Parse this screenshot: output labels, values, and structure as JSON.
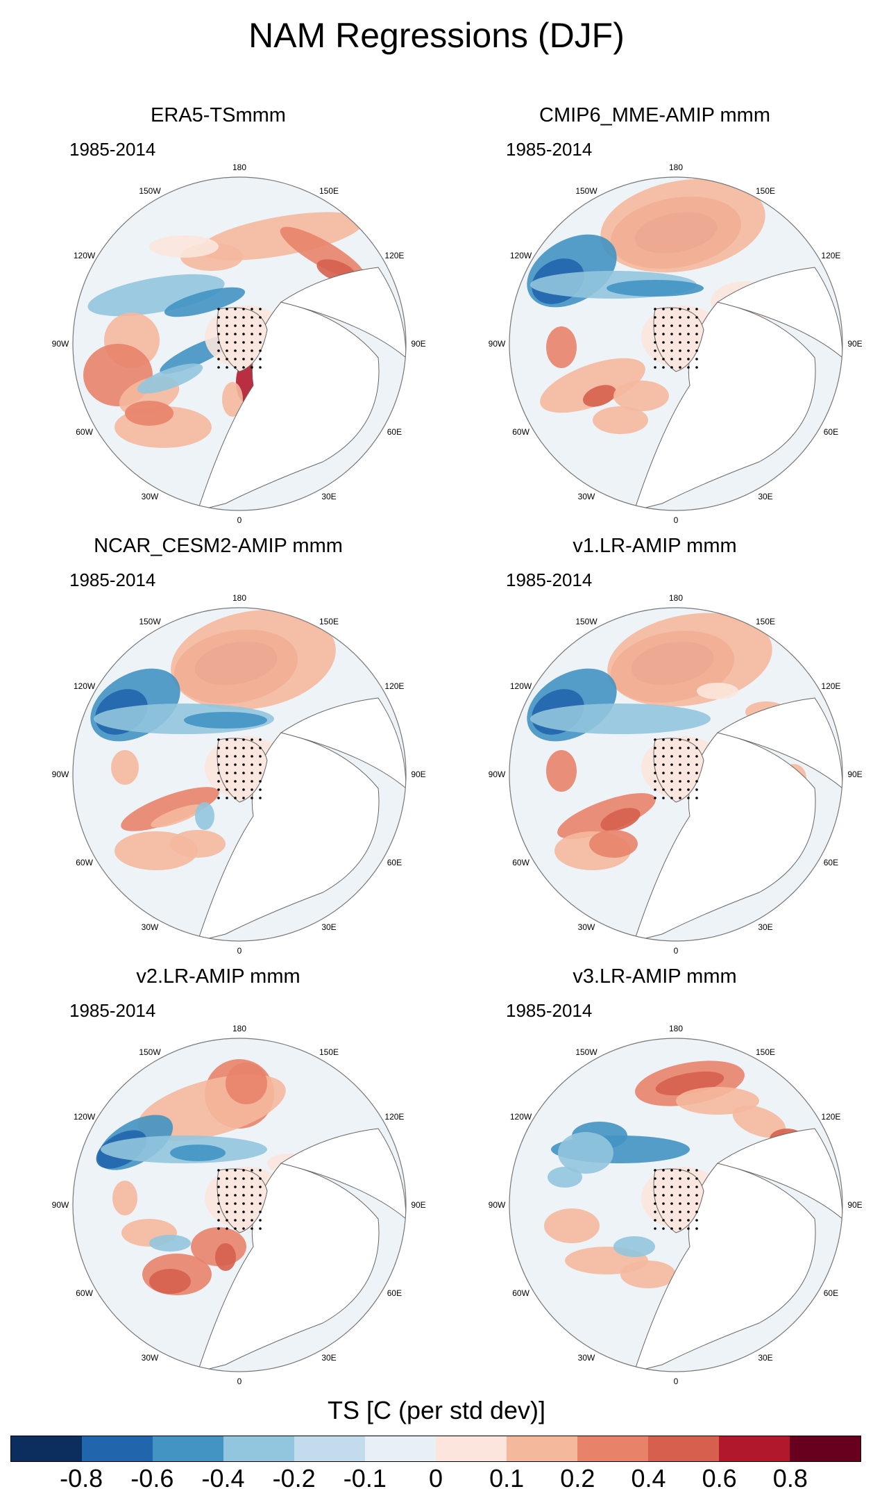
{
  "title": "NAM Regressions (DJF)",
  "panels": [
    {
      "title": "ERA5-TSmmm",
      "period": "1985-2014",
      "pattern": "era5"
    },
    {
      "title": "CMIP6_MME-AMIP  mmm",
      "period": "1985-2014",
      "pattern": "cmip6"
    },
    {
      "title": "NCAR_CESM2-AMIP  mmm",
      "period": "1985-2014",
      "pattern": "cesm2"
    },
    {
      "title": "v1.LR-AMIP  mmm",
      "period": "1985-2014",
      "pattern": "v1"
    },
    {
      "title": "v2.LR-AMIP  mmm",
      "period": "1985-2014",
      "pattern": "v2"
    },
    {
      "title": "v3.LR-AMIP  mmm",
      "period": "1985-2014",
      "pattern": "v3"
    }
  ],
  "lon_labels": [
    "180",
    "150E",
    "120E",
    "90E",
    "60E",
    "30E",
    "0",
    "30W",
    "60W",
    "90W",
    "120W",
    "150W"
  ],
  "colorbar": {
    "title": "TS [C (per std dev)]",
    "ticks": [
      "-0.8",
      "-0.6",
      "-0.4",
      "-0.2",
      "-0.1",
      "0",
      "0.1",
      "0.2",
      "0.4",
      "0.6",
      "0.8"
    ],
    "colors": [
      "#0b2e5f",
      "#2166ac",
      "#4393c3",
      "#92c5de",
      "#c3dced",
      "#e8eff5",
      "#fbe5dc",
      "#f4b89d",
      "#e8836a",
      "#d6604d",
      "#b2182b",
      "#67001f"
    ]
  }
}
